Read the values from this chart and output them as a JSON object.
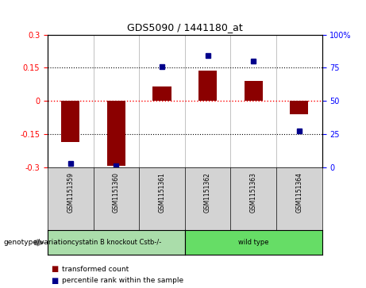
{
  "title": "GDS5090 / 1441180_at",
  "samples": [
    "GSM1151359",
    "GSM1151360",
    "GSM1151361",
    "GSM1151362",
    "GSM1151363",
    "GSM1151364"
  ],
  "transformed_counts": [
    -0.185,
    -0.295,
    0.065,
    0.135,
    0.09,
    -0.06
  ],
  "percentile_ranks": [
    3,
    1,
    76,
    84,
    80,
    27
  ],
  "bar_color": "#8B0000",
  "dot_color": "#00008B",
  "ylim_left": [
    -0.3,
    0.3
  ],
  "ylim_right": [
    0,
    100
  ],
  "yticks_left": [
    -0.3,
    -0.15,
    0.0,
    0.15,
    0.3
  ],
  "yticks_right": [
    0,
    25,
    50,
    75,
    100
  ],
  "legend_label_red": "transformed count",
  "legend_label_blue": "percentile rank within the sample",
  "genotype_label": "genotype/variation",
  "groups": [
    {
      "label": "cystatin B knockout Cstb-/-",
      "start": 0,
      "end": 2,
      "color": "#aaddaa"
    },
    {
      "label": "wild type",
      "start": 3,
      "end": 5,
      "color": "#66dd66"
    }
  ],
  "sample_box_color": "#d3d3d3",
  "bar_width": 0.4
}
